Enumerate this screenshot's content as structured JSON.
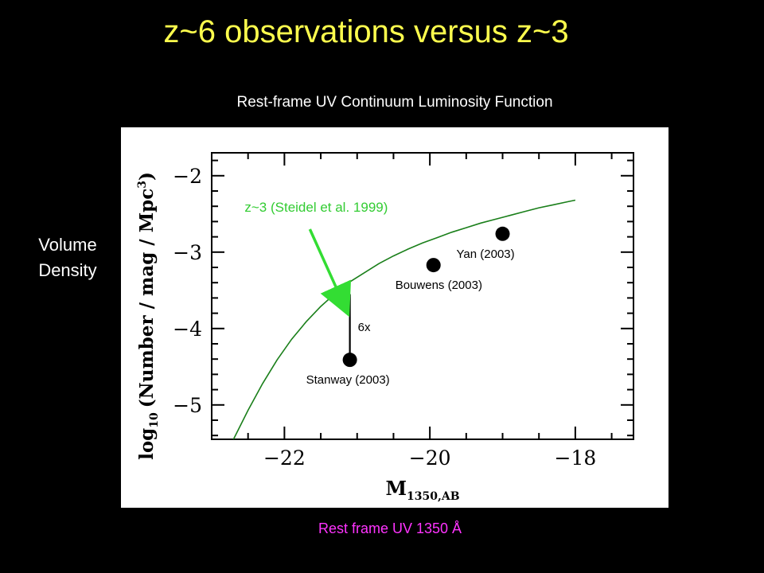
{
  "slide": {
    "title": "z~6 observations versus z~3",
    "subtitle": "Rest-frame UV Continuum Luminosity Function",
    "side_label_line1": "Volume",
    "side_label_line2": "Density",
    "bottom_caption": "Rest frame UV 1350 Å"
  },
  "colors": {
    "background": "#000000",
    "title": "#ffff4d",
    "caption": "#ff33ff",
    "curve": "#1a7f1a",
    "annotation_arrow": "#33dd33",
    "annotation_text": "#33cc33",
    "points": "#000000"
  },
  "chart_data": {
    "type": "scatter",
    "xlabel_main": "M",
    "xlabel_sub": "1350,AB",
    "ylabel_main": "log",
    "ylabel_sub": "10",
    "ylabel_rest": "(Number / mag / Mpc",
    "ylabel_sup": "3",
    "ylabel_close": ")",
    "xlim": [
      -23,
      -17.2
    ],
    "ylim": [
      -5.45,
      -1.7
    ],
    "x_major_ticks": [
      -22,
      -20,
      -18
    ],
    "x_tick_labels": [
      "−22",
      "−20",
      "−18"
    ],
    "y_major_ticks": [
      -2,
      -3,
      -4,
      -5
    ],
    "y_tick_labels": [
      "−2",
      "−3",
      "−4",
      "−5"
    ],
    "grid": false,
    "series": [
      {
        "name": "z~3 (Steidel et al. 1999)",
        "kind": "line",
        "x": [
          -22.7,
          -22.5,
          -22.3,
          -22.1,
          -21.9,
          -21.7,
          -21.5,
          -21.3,
          -21.1,
          -20.9,
          -20.7,
          -20.5,
          -20.3,
          -20.1,
          -19.9,
          -19.7,
          -19.5,
          -19.3,
          -19.1,
          -18.9,
          -18.7,
          -18.5,
          -18.3,
          -18.1,
          -18.0
        ],
        "y": [
          -5.45,
          -5.07,
          -4.72,
          -4.41,
          -4.14,
          -3.91,
          -3.71,
          -3.54,
          -3.39,
          -3.27,
          -3.15,
          -3.05,
          -2.96,
          -2.88,
          -2.81,
          -2.74,
          -2.68,
          -2.62,
          -2.57,
          -2.52,
          -2.47,
          -2.42,
          -2.38,
          -2.34,
          -2.32
        ]
      }
    ],
    "points": [
      {
        "label": "Stanway (2003)",
        "x": -21.1,
        "y": -4.41
      },
      {
        "label": "Bouwens (2003)",
        "x": -19.95,
        "y": -3.17
      },
      {
        "label": "Yan (2003)",
        "x": -19.0,
        "y": -2.76
      }
    ],
    "annotations": {
      "factor_label": "6x",
      "factor_arrow": {
        "x": -21.1,
        "y_from": -4.41,
        "y_to": -3.53
      },
      "curve_label": "z~3 (Steidel et al. 1999)",
      "curve_pointer": {
        "x_from": -21.65,
        "y_from": -2.7,
        "x_to": -21.2,
        "y_to": -3.65
      }
    }
  }
}
